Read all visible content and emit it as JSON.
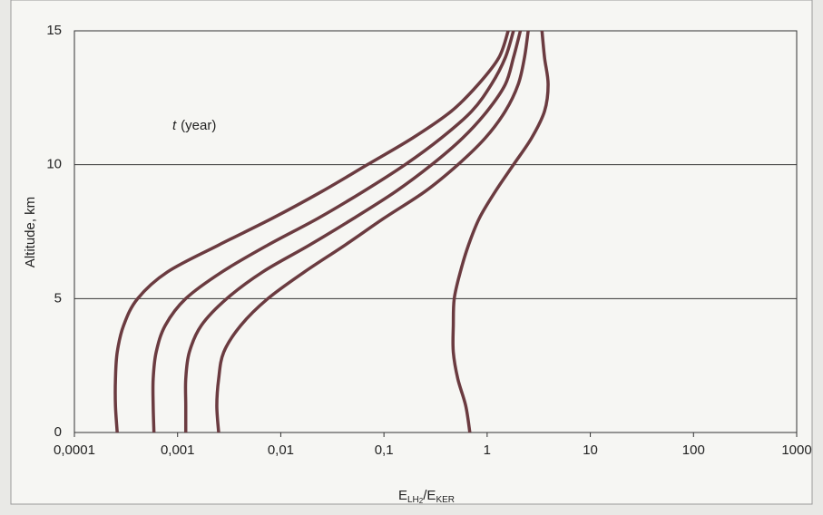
{
  "chart_data": {
    "type": "line",
    "ylabel": "Altitude, km",
    "xlabel": {
      "main": "E",
      "sub1": "LH",
      "sub1sub": "2",
      "mid": "/E",
      "sub2": "KER"
    },
    "annotation": {
      "var": "t",
      "text": "(year)"
    },
    "xscale": "log",
    "xlim": [
      0.0001,
      1000
    ],
    "xticks": [
      {
        "value": 0.0001,
        "label": "0,0001"
      },
      {
        "value": 0.001,
        "label": "0,001"
      },
      {
        "value": 0.01,
        "label": "0,01"
      },
      {
        "value": 0.1,
        "label": "0,1"
      },
      1,
      10,
      100,
      1000
    ],
    "ylim": [
      0,
      15
    ],
    "yticks": [
      0,
      5,
      10,
      15
    ],
    "grid": true,
    "y": [
      0,
      1,
      2,
      3,
      4,
      5,
      6,
      7,
      8,
      9,
      10,
      11,
      12,
      13,
      14,
      15
    ],
    "series": [
      {
        "color": "#6b3b40",
        "x": [
          0.00026,
          0.00025,
          0.00025,
          0.00026,
          0.0003,
          0.00041,
          0.0008,
          0.0025,
          0.0083,
          0.025,
          0.069,
          0.19,
          0.45,
          0.82,
          1.3,
          1.6
        ]
      },
      {
        "color": "#6b3b40",
        "x": [
          0.00059,
          0.00058,
          0.00058,
          0.00062,
          0.00076,
          0.0012,
          0.0027,
          0.0075,
          0.023,
          0.063,
          0.16,
          0.36,
          0.71,
          1.1,
          1.5,
          1.8
        ]
      },
      {
        "color": "#6b3b40",
        "x": [
          0.0012,
          0.0012,
          0.0012,
          0.0013,
          0.0017,
          0.003,
          0.0067,
          0.019,
          0.051,
          0.13,
          0.29,
          0.58,
          1.0,
          1.5,
          1.8,
          2.1
        ]
      },
      {
        "color": "#6b3b40",
        "x": [
          0.0025,
          0.0024,
          0.0025,
          0.0028,
          0.0041,
          0.0075,
          0.017,
          0.042,
          0.1,
          0.25,
          0.52,
          0.96,
          1.5,
          2.0,
          2.3,
          2.5
        ]
      },
      {
        "color": "#6b3b40",
        "x": [
          0.68,
          0.62,
          0.52,
          0.47,
          0.47,
          0.48,
          0.55,
          0.66,
          0.84,
          1.2,
          1.8,
          2.7,
          3.6,
          3.9,
          3.6,
          3.4
        ]
      }
    ]
  }
}
